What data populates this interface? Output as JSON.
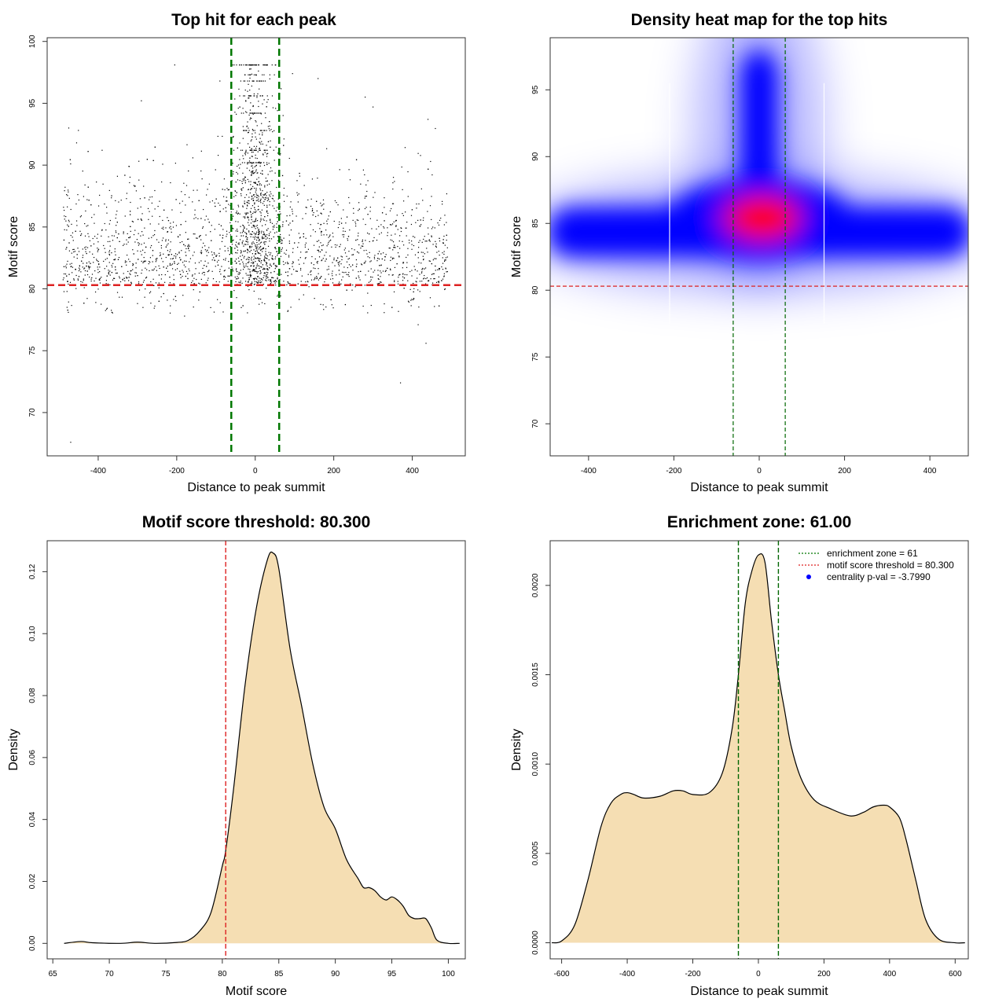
{
  "chart_data": [
    {
      "type": "scatter",
      "title": "Top hit for each peak",
      "xlabel": "Distance to peak summit",
      "ylabel": "Motif score",
      "xlim": [
        -530,
        535
      ],
      "ylim": [
        66.5,
        100.3
      ],
      "x_ticks": [
        "-400",
        "-200",
        "0",
        "200",
        "400"
      ],
      "y_ticks": [
        "70",
        "75",
        "80",
        "85",
        "90",
        "95",
        "100"
      ],
      "threshold_y": 80.3,
      "zone_x": [
        -61,
        61
      ],
      "threshold_color": "#dd2222",
      "zone_color": "#007700",
      "point_color": "#000000",
      "point_count": 3000,
      "sample_points": [
        [
          -470,
          67.6
        ],
        [
          -205,
          98.1
        ],
        [
          -180,
          77.8
        ],
        [
          370,
          72.4
        ],
        [
          435,
          75.6
        ],
        [
          415,
          77.1
        ],
        [
          280,
          95.5
        ],
        [
          -290,
          95.2
        ],
        [
          160,
          97.0
        ],
        [
          -90,
          96.8
        ],
        [
          95,
          97.4
        ],
        [
          440,
          93.7
        ],
        [
          -475,
          93.0
        ],
        [
          -455,
          91.8
        ],
        [
          -390,
          91.2
        ],
        [
          300,
          94.7
        ],
        [
          -365,
          78.1
        ],
        [
          275,
          78.6
        ],
        [
          390,
          79.0
        ]
      ]
    },
    {
      "type": "heatmap",
      "title": "Density heat map for the top hits",
      "xlabel": "Distance to peak summit",
      "ylabel": "Motif score",
      "xlim": [
        -490,
        490
      ],
      "ylim": [
        67.6,
        98.9
      ],
      "x_ticks": [
        "-400",
        "-200",
        "0",
        "200",
        "400"
      ],
      "y_ticks": [
        "70",
        "75",
        "80",
        "85",
        "90",
        "95"
      ],
      "threshold_y": 80.3,
      "zone_x": [
        -61,
        61
      ],
      "colors": [
        "#ffffff",
        "#0000ff",
        "#ff0000"
      ],
      "threshold_color": "#dd2222",
      "zone_color": "#006600"
    },
    {
      "type": "area",
      "title": "Motif score threshold: 80.300",
      "xlabel": "Motif score",
      "ylabel": "Density",
      "xlim": [
        64.5,
        101.5
      ],
      "ylim": [
        -0.005,
        0.13
      ],
      "x_ticks": [
        "65",
        "70",
        "75",
        "80",
        "85",
        "90",
        "95",
        "100"
      ],
      "y_ticks": [
        "0.00",
        "0.02",
        "0.04",
        "0.06",
        "0.08",
        "0.10",
        "0.12"
      ],
      "threshold_x": 80.3,
      "fill_color": "#f5deb3",
      "threshold_color": "#dd2222",
      "x": [
        66,
        67.5,
        68.5,
        71,
        72.5,
        74,
        76,
        77,
        78,
        79,
        80,
        80.3,
        81,
        82,
        83,
        84,
        84.5,
        85,
        86,
        87,
        88,
        89,
        90,
        91,
        92,
        92.5,
        93,
        93.5,
        94,
        94.5,
        95,
        95.5,
        96,
        96.5,
        97,
        97.5,
        98,
        98.5,
        99,
        100,
        101
      ],
      "y": [
        0.0,
        0.0006,
        0.0002,
        0.0,
        0.0004,
        0.0,
        0.0003,
        0.001,
        0.004,
        0.01,
        0.025,
        0.03,
        0.05,
        0.083,
        0.108,
        0.124,
        0.126,
        0.121,
        0.095,
        0.077,
        0.058,
        0.044,
        0.037,
        0.027,
        0.021,
        0.018,
        0.018,
        0.017,
        0.015,
        0.014,
        0.015,
        0.014,
        0.012,
        0.009,
        0.008,
        0.008,
        0.008,
        0.005,
        0.001,
        0.0,
        0.0
      ]
    },
    {
      "type": "area",
      "title": "Enrichment zone: 61.00",
      "xlabel": "Distance to peak summit",
      "ylabel": "Density",
      "xlim": [
        -635,
        640
      ],
      "ylim": [
        -9e-05,
        0.00225
      ],
      "x_ticks": [
        "-600",
        "-400",
        "-200",
        "0",
        "200",
        "400",
        "600"
      ],
      "y_ticks": [
        "0.0000",
        "0.0005",
        "0.0010",
        "0.0015",
        "0.0020"
      ],
      "zone_x": [
        -61,
        61
      ],
      "fill_color": "#f5deb3",
      "zone_color": "#006600",
      "x": [
        -630,
        -600,
        -560,
        -520,
        -480,
        -450,
        -420,
        -400,
        -380,
        -350,
        -300,
        -260,
        -230,
        -200,
        -150,
        -110,
        -80,
        -61,
        -40,
        -20,
        0,
        20,
        40,
        61,
        80,
        100,
        130,
        170,
        220,
        280,
        320,
        350,
        380,
        400,
        430,
        450,
        480,
        510,
        550,
        600,
        630
      ],
      "y": [
        0.0,
        1e-05,
        0.0001,
        0.00035,
        0.00065,
        0.00078,
        0.00083,
        0.00084,
        0.00083,
        0.00081,
        0.00082,
        0.00085,
        0.00085,
        0.00083,
        0.00084,
        0.00095,
        0.0012,
        0.0015,
        0.0019,
        0.00208,
        0.00217,
        0.00213,
        0.0018,
        0.0015,
        0.0013,
        0.0011,
        0.00092,
        0.0008,
        0.00075,
        0.00071,
        0.00073,
        0.00076,
        0.00077,
        0.00076,
        0.0007,
        0.00058,
        0.00035,
        0.00013,
        2e-05,
        0.0,
        0.0
      ]
    }
  ],
  "legend": {
    "items": [
      {
        "label": "enrichment zone = 61",
        "color": "#007700",
        "kind": "dotted-line"
      },
      {
        "label": "motif score threshold = 80.300",
        "color": "#dd2222",
        "kind": "dotted-line"
      },
      {
        "label": "centrality p-val = -3.7990",
        "color": "#0000ff",
        "kind": "point"
      }
    ]
  }
}
